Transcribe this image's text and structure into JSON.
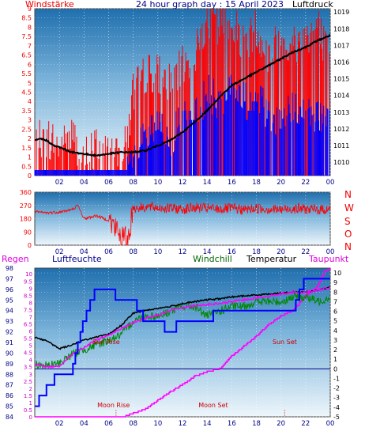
{
  "header": {
    "left": "Windstärke",
    "center": "24 hour graph day : 15 April 2023",
    "right": "Luftdruck"
  },
  "compass": [
    "N",
    "W",
    "S",
    "O",
    "N"
  ],
  "legend2": {
    "regen": "Regen",
    "luftfeuchte": "Luftfeuchte",
    "windchill": "Windchill",
    "temperatur": "Temperatur",
    "taupunkt": "Taupunkt"
  },
  "annotations": {
    "sun_rise": "Sun Rise",
    "sun_set": "Sun Set",
    "moon_rise": "Moon Rise",
    "moon_set": "Moon Set"
  },
  "colors": {
    "wind_gust": "#ff0000",
    "wind_speed": "#0000ff",
    "pressure": "#000000",
    "humidity": "#0000ff",
    "temperature": "#000000",
    "windchill": "#008800",
    "dewpoint": "#ff00ff",
    "rain": "#0000ff",
    "panel_top": "#1f6fae",
    "panel_bottom": "#eef6fb"
  },
  "chart_data": [
    {
      "type": "line",
      "x_ticks": [
        "02",
        "04",
        "06",
        "08",
        "10",
        "12",
        "14",
        "16",
        "18",
        "20",
        "22",
        "00"
      ],
      "left_axis": {
        "ticks": [
          "0",
          "0.5",
          "1",
          "1.5",
          "2",
          "2.5",
          "3",
          "3.5",
          "4",
          "4.5",
          "5",
          "5.5",
          "6",
          "6.5",
          "7",
          "7.5",
          "8",
          "8.5",
          "9"
        ],
        "ylim": [
          0,
          9
        ]
      },
      "right_axis": {
        "ticks": [
          "1010",
          "1011",
          "1012",
          "1013",
          "1014",
          "1015",
          "1016",
          "1017",
          "1018",
          "1019"
        ],
        "ylim": [
          1009.2,
          1019.2
        ]
      },
      "series": [
        {
          "name": "Luftdruck",
          "axis": "right",
          "x": [
            0,
            0.5,
            1,
            1.5,
            2,
            3,
            4,
            5,
            6,
            7,
            8,
            9,
            10,
            11,
            12,
            13,
            14,
            15,
            16,
            17,
            18,
            19,
            20,
            21,
            22,
            23,
            24
          ],
          "values": [
            1011.3,
            1011.4,
            1011.3,
            1011.0,
            1010.9,
            1010.6,
            1010.5,
            1010.4,
            1010.5,
            1010.6,
            1010.6,
            1010.7,
            1011.0,
            1011.3,
            1011.8,
            1012.4,
            1013.1,
            1013.9,
            1014.6,
            1015.0,
            1015.4,
            1015.8,
            1016.2,
            1016.6,
            1016.9,
            1017.3,
            1017.6
          ]
        },
        {
          "name": "Windstärke (Böen)",
          "axis": "left",
          "x": [
            0,
            1,
            2,
            3,
            4,
            5,
            6,
            7,
            7.5,
            8,
            9,
            10,
            11,
            12,
            13,
            14,
            15,
            16,
            17,
            18,
            19,
            20,
            21,
            22,
            23,
            24
          ],
          "values": [
            2.0,
            2.0,
            1.5,
            2.0,
            1.0,
            1.5,
            1.0,
            1.0,
            2.0,
            4.5,
            5.5,
            5.5,
            5.0,
            6.0,
            6.5,
            8.5,
            8.0,
            8.5,
            7.0,
            8.0,
            6.5,
            7.5,
            7.0,
            7.5,
            8.0,
            6.0
          ]
        },
        {
          "name": "Windstärke (Mittel)",
          "axis": "left",
          "x": [
            0,
            1,
            2,
            3,
            4,
            5,
            6,
            7,
            7.5,
            8,
            9,
            10,
            11,
            12,
            13,
            14,
            15,
            16,
            17,
            18,
            19,
            20,
            21,
            22,
            23,
            24
          ],
          "values": [
            0.5,
            0.5,
            0.5,
            0.5,
            0.5,
            0.5,
            0.5,
            0.5,
            0.5,
            1.0,
            2.0,
            2.5,
            2.0,
            3.0,
            3.0,
            4.5,
            4.0,
            5.0,
            4.0,
            4.0,
            3.5,
            3.0,
            3.5,
            3.0,
            3.5,
            3.0
          ]
        }
      ]
    },
    {
      "type": "line",
      "x_ticks": [
        "02",
        "04",
        "06",
        "08",
        "10",
        "12",
        "14",
        "16",
        "18",
        "20",
        "22",
        "00"
      ],
      "left_axis": {
        "ticks": [
          "0",
          "90",
          "180",
          "270",
          "360"
        ],
        "ylim": [
          0,
          360
        ]
      },
      "series": [
        {
          "name": "Windrichtung",
          "x": [
            0,
            1,
            2,
            3,
            3.5,
            4,
            5,
            6,
            6.5,
            7,
            7.5,
            8,
            9,
            10,
            11,
            12,
            13,
            14,
            15,
            16,
            17,
            18,
            19,
            20,
            21,
            22,
            23,
            24
          ],
          "values": [
            225,
            220,
            225,
            240,
            270,
            180,
            200,
            170,
            120,
            60,
            20,
            250,
            260,
            255,
            250,
            245,
            255,
            250,
            245,
            250,
            240,
            250,
            245,
            240,
            250,
            245,
            240,
            245
          ]
        }
      ]
    },
    {
      "type": "line",
      "x_ticks": [
        "02",
        "04",
        "06",
        "08",
        "10",
        "12",
        "14",
        "16",
        "18",
        "20",
        "22",
        "00"
      ],
      "left_axis": {
        "ticks": [
          "84",
          "85",
          "86",
          "87",
          "88",
          "89",
          "90",
          "91",
          "92",
          "93",
          "94",
          "95",
          "96",
          "97",
          "98"
        ],
        "ylim": [
          84,
          98
        ]
      },
      "inner_left_axis": {
        "ticks": [
          "0",
          "0.5",
          "1",
          "1.5",
          "2",
          "2.5",
          "3",
          "3.5",
          "4",
          "4.5",
          "5",
          "5.5",
          "6",
          "6.5",
          "7",
          "7.5",
          "8",
          "8.5",
          "9",
          "9.5",
          "10"
        ],
        "ylim": [
          0,
          10.4
        ]
      },
      "right_axis": {
        "ticks": [
          "-5",
          "-4",
          "-3",
          "-2",
          "-1",
          "0",
          "1",
          "2",
          "3",
          "4",
          "5",
          "6",
          "7",
          "8",
          "9",
          "10"
        ],
        "ylim": [
          -5,
          10.5
        ]
      },
      "series": [
        {
          "name": "Luftfeuchte",
          "axis": "left",
          "x": [
            0,
            0.7,
            1.2,
            2,
            3,
            4,
            5,
            6,
            7,
            8,
            9,
            10,
            11,
            12,
            13,
            14,
            15,
            16,
            17,
            18,
            19,
            20,
            21,
            22,
            23,
            24
          ],
          "values": [
            85,
            86,
            87,
            88,
            88,
            93,
            96,
            96,
            95,
            95,
            93,
            93,
            92,
            93,
            93,
            93,
            94,
            94,
            94,
            94,
            94,
            94,
            94,
            97,
            97,
            97
          ]
        },
        {
          "name": "Temperatur",
          "axis": "right",
          "x": [
            0,
            1,
            2,
            3,
            4,
            5,
            6,
            7,
            8,
            9,
            10,
            11,
            12,
            13,
            14,
            15,
            16,
            17,
            18,
            19,
            20,
            21,
            22,
            23,
            24
          ],
          "values": [
            3.3,
            2.9,
            2.1,
            2.5,
            3.0,
            3.3,
            3.6,
            4.5,
            5.8,
            6.1,
            6.3,
            6.5,
            6.8,
            7.0,
            7.2,
            7.3,
            7.5,
            7.6,
            7.7,
            7.8,
            7.9,
            8.0,
            8.0,
            8.2,
            8.5
          ]
        },
        {
          "name": "Windchill",
          "axis": "right",
          "x": [
            0,
            1,
            2,
            3,
            4,
            5,
            6,
            7,
            8,
            9,
            10,
            11,
            12,
            13,
            14,
            15,
            16,
            17,
            18,
            19,
            20,
            21,
            22,
            23,
            24
          ],
          "values": [
            0.5,
            0.3,
            0.6,
            1.5,
            2.0,
            2.5,
            3.0,
            3.5,
            5.0,
            5.5,
            5.5,
            6.0,
            6.5,
            6.5,
            5.5,
            6.0,
            6.5,
            6.5,
            7.0,
            7.0,
            7.0,
            7.5,
            7.5,
            7.0,
            7.5
          ]
        },
        {
          "name": "Taupunkt",
          "axis": "right",
          "x": [
            0,
            1,
            2,
            3,
            4,
            5,
            6,
            7,
            8,
            9,
            10,
            11,
            12,
            13,
            14,
            15,
            16,
            17,
            18,
            19,
            20,
            21,
            22,
            23,
            24
          ],
          "values": [
            0.5,
            0.2,
            0.3,
            1.5,
            2.2,
            3.0,
            3.5,
            4.2,
            4.8,
            5.3,
            5.6,
            6.1,
            6.4,
            6.6,
            6.7,
            6.8,
            7.0,
            7.2,
            7.4,
            7.6,
            7.8,
            8.0,
            8.0,
            8.2,
            8.5
          ]
        },
        {
          "name": "Regen",
          "axis": "inner_left",
          "x": [
            0,
            5,
            7,
            8,
            9,
            10,
            11,
            12,
            13,
            14,
            15,
            16,
            17,
            18,
            19,
            20,
            21,
            22,
            23,
            23.5,
            24
          ],
          "values": [
            0,
            0,
            0,
            0.3,
            0.6,
            1.2,
            1.8,
            2.3,
            2.9,
            3.2,
            3.4,
            4.3,
            5.0,
            5.7,
            6.5,
            7.1,
            7.5,
            8.5,
            9.2,
            10.2,
            10.4
          ]
        }
      ]
    }
  ]
}
